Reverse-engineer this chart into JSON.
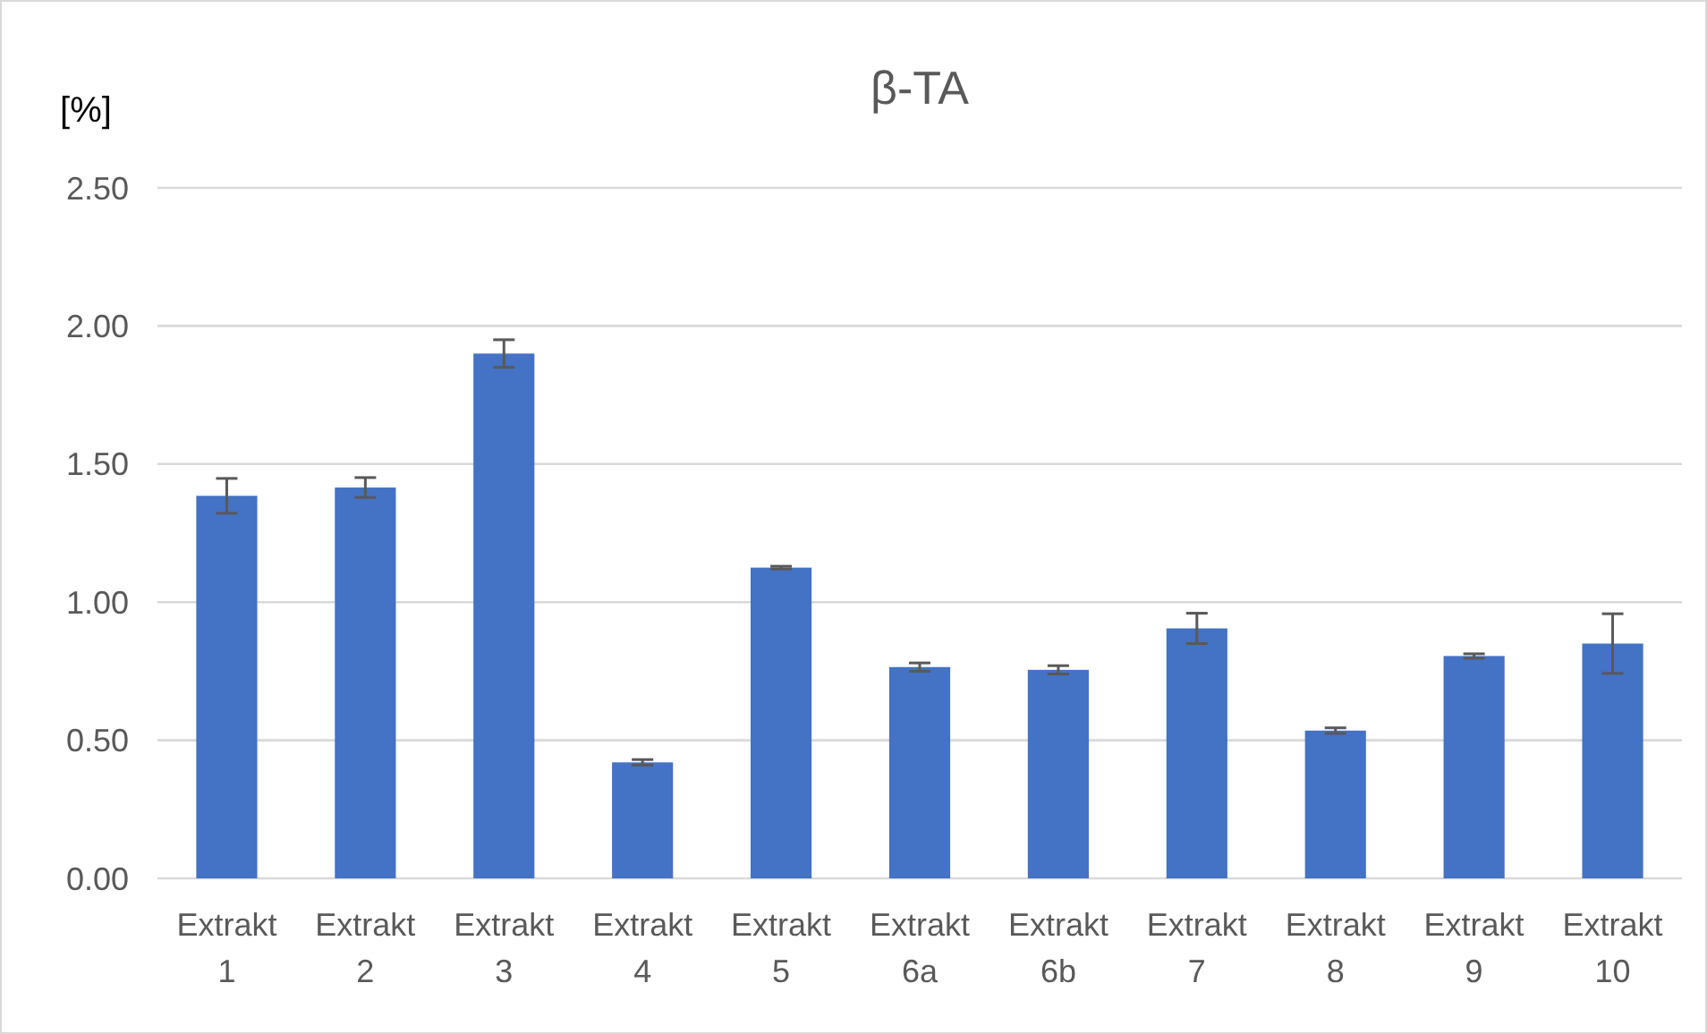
{
  "chart_data": {
    "type": "bar",
    "title": "β-TA",
    "ylabel": "[%]",
    "categories": [
      "Extrakt 1",
      "Extrakt 2",
      "Extrakt 3",
      "Extrakt 4",
      "Extrakt 5",
      "Extrakt 6a",
      "Extrakt 6b",
      "Extrakt 7",
      "Extrakt 8",
      "Extrakt 9",
      "Extrakt 10"
    ],
    "values": [
      1.385,
      1.415,
      1.9,
      0.42,
      1.125,
      0.765,
      0.755,
      0.905,
      0.535,
      0.805,
      0.85
    ],
    "errors": [
      0.063,
      0.036,
      0.05,
      0.01,
      0.005,
      0.015,
      0.015,
      0.055,
      0.01,
      0.008,
      0.108
    ],
    "color": "#4472c4",
    "ylim": [
      0,
      2.5
    ],
    "yticks": [
      {
        "value": 0,
        "label": "0.00"
      },
      {
        "value": 0.5,
        "label": "0.50"
      },
      {
        "value": 1,
        "label": "1.00"
      },
      {
        "value": 1.5,
        "label": "1.50"
      },
      {
        "value": 2,
        "label": "2.00"
      },
      {
        "value": 2.5,
        "label": "2.50"
      }
    ],
    "grid": "y"
  }
}
